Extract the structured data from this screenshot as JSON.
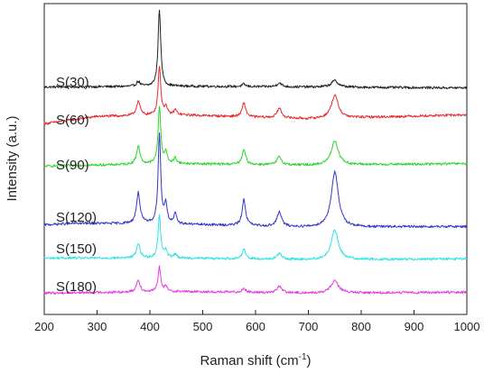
{
  "chart_data": {
    "type": "line",
    "title": "",
    "xlabel": "Raman shift (cm",
    "xlabel_superscript": "-1",
    "xlabel_suffix": ")",
    "ylabel": "Intensity (a.u.)",
    "xlim": [
      200,
      1000
    ],
    "xticks": [
      200,
      300,
      400,
      500,
      600,
      700,
      800,
      900,
      1000
    ],
    "y_ticks_shown": false,
    "grid": false,
    "legend": "none",
    "label_placement": "left of each trace",
    "peaks_cm1": [
      378,
      418,
      430,
      448,
      578,
      645,
      750
    ],
    "series": [
      {
        "name": "S(30)",
        "color": "#222222",
        "baseline": [
          [
            200,
            6
          ],
          [
            450,
            7
          ],
          [
            700,
            6
          ],
          [
            1000,
            5
          ]
        ],
        "peaks": [
          [
            378,
            6,
            4
          ],
          [
            418,
            95,
            3
          ],
          [
            578,
            3,
            4
          ],
          [
            645,
            5,
            5
          ],
          [
            750,
            8,
            8
          ]
        ]
      },
      {
        "name": "S(60)",
        "color": "#e8282d",
        "baseline": [
          [
            200,
            3
          ],
          [
            300,
            12
          ],
          [
            450,
            14
          ],
          [
            700,
            9
          ],
          [
            1000,
            14
          ]
        ],
        "peaks": [
          [
            378,
            18,
            4
          ],
          [
            418,
            60,
            3
          ],
          [
            430,
            10,
            3
          ],
          [
            448,
            6,
            3
          ],
          [
            578,
            17,
            4
          ],
          [
            645,
            12,
            5
          ],
          [
            750,
            28,
            8
          ]
        ]
      },
      {
        "name": "S(90)",
        "color": "#2bd42b",
        "baseline": [
          [
            200,
            3
          ],
          [
            450,
            6
          ],
          [
            700,
            4
          ],
          [
            1000,
            6
          ]
        ],
        "peaks": [
          [
            378,
            22,
            4
          ],
          [
            418,
            70,
            3
          ],
          [
            430,
            14,
            3
          ],
          [
            448,
            7,
            3
          ],
          [
            578,
            18,
            4
          ],
          [
            645,
            10,
            5
          ],
          [
            750,
            30,
            8
          ]
        ]
      },
      {
        "name": "S(120)",
        "color": "#3535c8",
        "baseline": [
          [
            200,
            6
          ],
          [
            260,
            8
          ],
          [
            450,
            7
          ],
          [
            700,
            3
          ],
          [
            1000,
            4
          ]
        ],
        "peaks": [
          [
            378,
            38,
            4
          ],
          [
            418,
            110,
            3
          ],
          [
            430,
            24,
            3
          ],
          [
            448,
            12,
            3
          ],
          [
            578,
            32,
            4
          ],
          [
            645,
            18,
            5
          ],
          [
            750,
            68,
            8
          ]
        ]
      },
      {
        "name": "S(150)",
        "color": "#2de3e3",
        "baseline": [
          [
            200,
            4
          ],
          [
            450,
            4
          ],
          [
            700,
            2
          ],
          [
            1000,
            3
          ]
        ],
        "peaks": [
          [
            378,
            18,
            4
          ],
          [
            418,
            52,
            3
          ],
          [
            430,
            10,
            3
          ],
          [
            448,
            5,
            3
          ],
          [
            578,
            12,
            4
          ],
          [
            645,
            7,
            5
          ],
          [
            750,
            36,
            8
          ]
        ]
      },
      {
        "name": "S(180)",
        "color": "#e23be0",
        "baseline": [
          [
            200,
            3
          ],
          [
            450,
            5
          ],
          [
            700,
            3
          ],
          [
            1000,
            4
          ]
        ],
        "peaks": [
          [
            378,
            15,
            4
          ],
          [
            418,
            30,
            3
          ],
          [
            430,
            6,
            3
          ],
          [
            578,
            5,
            4
          ],
          [
            645,
            8,
            5
          ],
          [
            750,
            16,
            8
          ]
        ]
      }
    ]
  }
}
